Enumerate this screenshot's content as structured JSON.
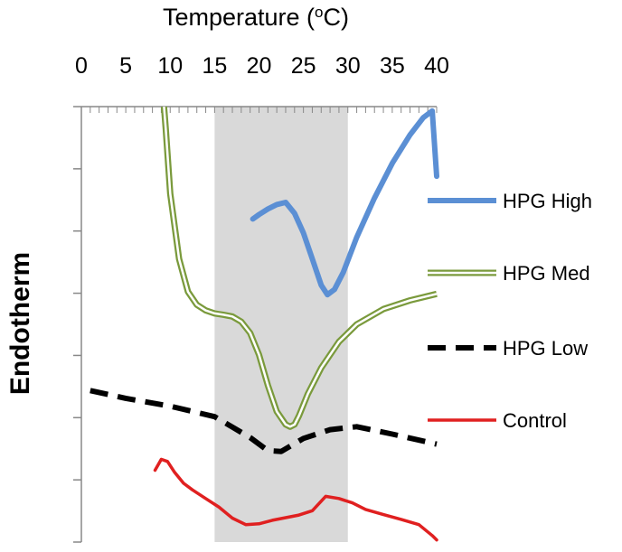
{
  "chart_data": {
    "type": "line",
    "title": "",
    "xlabel_prefix": "Temperature (",
    "xlabel_degree": "o",
    "xlabel_suffix": "C)",
    "ylabel": "Endotherm",
    "xlim": [
      0,
      40
    ],
    "x_ticks": [
      "0",
      "5",
      "10",
      "15",
      "20",
      "25",
      "30",
      "35",
      "40"
    ],
    "x_axis_position": "top",
    "grid": false,
    "legend_position": "right",
    "shaded_region": {
      "x_start": 15,
      "x_end": 30,
      "color": "#d9d9d9"
    },
    "ylim": [
      0,
      100
    ],
    "series": [
      {
        "name": "HPG High",
        "color": "#5b8fd4",
        "style": "solid-thick",
        "x": [
          19.3,
          20,
          21,
          22,
          23,
          24,
          25,
          26,
          27,
          27.7,
          28.5,
          29.5,
          31,
          33,
          35,
          37,
          38.5,
          39.5,
          40
        ],
        "y": [
          74.2,
          75.2,
          76.5,
          77.5,
          78.0,
          75.5,
          71.0,
          65.0,
          59.0,
          56.8,
          58.0,
          62.0,
          70.0,
          79.0,
          87.0,
          93.5,
          97.5,
          99.0,
          84.0
        ]
      },
      {
        "name": "HPG Med",
        "color": "#7a9a3c",
        "style": "double",
        "x": [
          9.3,
          9.5,
          10,
          11,
          12,
          13,
          14,
          15,
          16,
          17,
          18,
          19,
          20,
          21,
          22,
          23,
          23.5,
          24,
          24.5,
          25.5,
          27,
          29,
          31,
          34,
          37,
          40
        ],
        "y": [
          100,
          95.0,
          80.0,
          65.0,
          57.5,
          54.5,
          53.2,
          52.5,
          52.2,
          51.8,
          50.6,
          48.0,
          43.0,
          36.0,
          30.0,
          27.0,
          26.5,
          27.0,
          29.0,
          34.0,
          40.0,
          46.0,
          50.0,
          53.5,
          55.5,
          57.0
        ]
      },
      {
        "name": "HPG Low",
        "color": "#000000",
        "style": "dashed-thick",
        "x": [
          1,
          5,
          10,
          15,
          19,
          21,
          22.5,
          25,
          28,
          31,
          35,
          40
        ],
        "y": [
          34.8,
          33.0,
          31.2,
          28.8,
          24.0,
          21.0,
          20.8,
          23.8,
          25.8,
          26.5,
          24.8,
          22.5
        ]
      },
      {
        "name": "Control",
        "color": "#e02020",
        "style": "solid",
        "x": [
          8.3,
          9,
          9.7,
          10.5,
          11.5,
          12.5,
          14,
          15.5,
          17,
          18.5,
          20,
          21.5,
          23,
          24.5,
          26,
          27.5,
          29,
          30.5,
          32,
          34,
          36,
          38,
          39.5,
          40
        ],
        "y": [
          16.5,
          19.0,
          18.5,
          16.0,
          13.5,
          12.0,
          10.0,
          8.0,
          5.5,
          4.0,
          4.2,
          5.0,
          5.6,
          6.2,
          7.2,
          10.5,
          10.0,
          9.0,
          7.5,
          6.3,
          5.2,
          4.0,
          1.5,
          0.5
        ]
      }
    ]
  }
}
